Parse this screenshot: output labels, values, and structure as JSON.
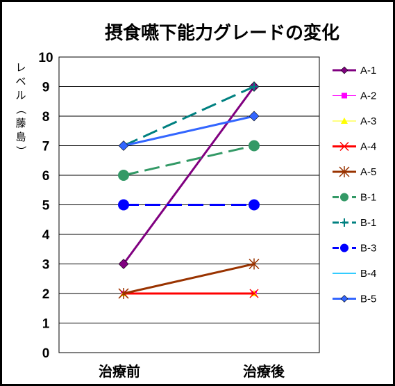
{
  "chart_data": {
    "type": "line",
    "title": "摂食嚥下能力グレードの変化",
    "ylabel_chars": [
      "レ",
      "ベ",
      "ル",
      "（",
      "藤",
      "島",
      "）"
    ],
    "categories": [
      "治療前",
      "治療後"
    ],
    "ylim": [
      0,
      10
    ],
    "yticks": [
      0,
      1,
      2,
      3,
      4,
      5,
      6,
      7,
      8,
      9,
      10
    ],
    "grid": true,
    "legend_position": "right",
    "series": [
      {
        "name": "A-1",
        "values": [
          3,
          9
        ],
        "color": "#800080",
        "marker": "diamond",
        "dash": "solid",
        "width": 3
      },
      {
        "name": "A-2",
        "values": [
          2,
          2
        ],
        "color": "#ff00ff",
        "marker": "square",
        "dash": "solid",
        "width": 1
      },
      {
        "name": "A-3",
        "values": [
          2,
          2
        ],
        "color": "#ffff00",
        "marker": "triangle",
        "dash": "solid",
        "width": 1
      },
      {
        "name": "A-4",
        "values": [
          2,
          2
        ],
        "color": "#ff0000",
        "marker": "x",
        "dash": "solid",
        "width": 3
      },
      {
        "name": "A-5",
        "values": [
          2,
          3
        ],
        "color": "#993300",
        "marker": "star",
        "dash": "solid",
        "width": 3
      },
      {
        "name": "B-1",
        "values": [
          6,
          7
        ],
        "color": "#339966",
        "marker": "circle",
        "dash": "dashed",
        "width": 3
      },
      {
        "name": "B-1",
        "values": [
          7,
          9
        ],
        "color": "#008080",
        "marker": "plus",
        "dash": "dashed",
        "width": 3
      },
      {
        "name": "B-3",
        "values": [
          5,
          5
        ],
        "color": "#0000ff",
        "marker": "circle",
        "dash": "dashed",
        "width": 3
      },
      {
        "name": "B-4",
        "values": [
          7,
          8
        ],
        "color": "#33ccff",
        "marker": "none",
        "dash": "solid",
        "width": 2
      },
      {
        "name": "B-5",
        "values": [
          7,
          8
        ],
        "color": "#3366ff",
        "marker": "diamond",
        "dash": "solid",
        "width": 3
      }
    ]
  }
}
